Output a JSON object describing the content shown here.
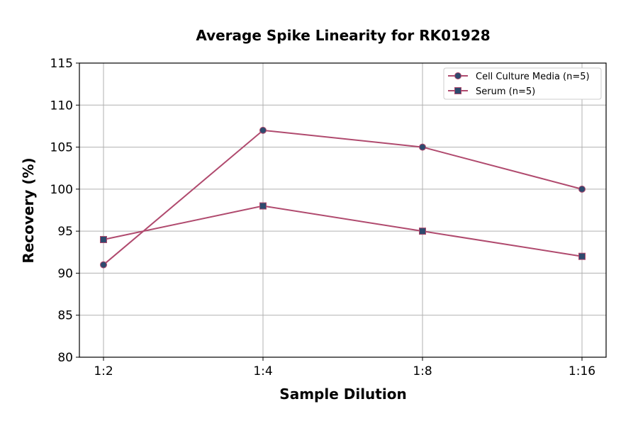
{
  "chart_data": {
    "type": "line",
    "title": "Average Spike Linearity for RK01928",
    "xlabel": "Sample Dilution",
    "ylabel": "Recovery (%)",
    "categories": [
      "1:2",
      "1:4",
      "1:8",
      "1:16"
    ],
    "ylim": [
      80,
      115
    ],
    "yticks": [
      80,
      85,
      90,
      95,
      100,
      105,
      110,
      115
    ],
    "grid": true,
    "legend_position": "top-right",
    "line_color": "#b04a6e",
    "marker_color": "#2e4a6e",
    "series": [
      {
        "name": "Cell Culture Media (n=5)",
        "marker": "circle",
        "values": [
          91,
          107,
          105,
          100
        ]
      },
      {
        "name": "Serum (n=5)",
        "marker": "square",
        "values": [
          94,
          98,
          95,
          92
        ]
      }
    ]
  }
}
